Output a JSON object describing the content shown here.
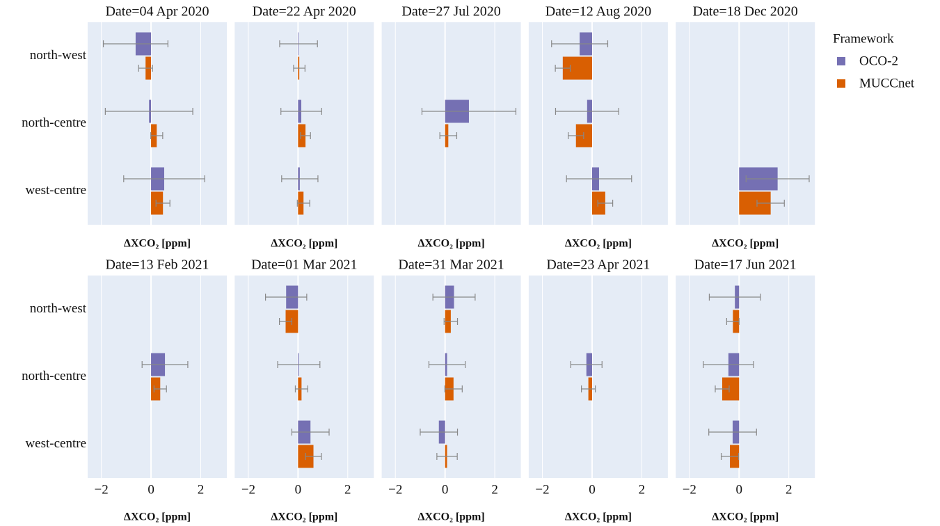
{
  "chart_data": [
    {
      "type": "bar",
      "orientation": "h",
      "title": "Date=04 Apr 2020",
      "xlabel": "ΔXCO₂ [ppm]",
      "legend_title": "Framework",
      "categories": [
        "north-west",
        "north-centre",
        "west-centre"
      ],
      "series": [
        {
          "name": "OCO-2",
          "color": "#7570b3",
          "values": [
            -0.62,
            -0.08,
            0.53
          ],
          "errors": [
            1.3,
            1.76,
            1.63
          ]
        },
        {
          "name": "MUCCnet",
          "color": "#d95f02",
          "values": [
            -0.22,
            0.23,
            0.48
          ],
          "errors": [
            0.28,
            0.24,
            0.28
          ]
        }
      ],
      "xlim": [
        -2.55,
        3.05
      ],
      "xticks": [
        -2,
        0,
        2
      ]
    },
    {
      "type": "bar",
      "orientation": "h",
      "title": "Date=22 Apr 2020",
      "xlabel": "ΔXCO₂ [ppm]",
      "categories": [
        null,
        null,
        null
      ],
      "series": [
        {
          "color": "#7570b3",
          "values": [
            0.02,
            0.13,
            0.07
          ],
          "errors": [
            0.76,
            0.82,
            0.73
          ]
        },
        {
          "color": "#d95f02",
          "values": [
            0.05,
            0.3,
            0.22
          ],
          "errors": [
            0.23,
            0.2,
            0.25
          ]
        }
      ],
      "xlim": [
        -2.55,
        3.05
      ],
      "xticks": [
        -2,
        0,
        2
      ]
    },
    {
      "type": "bar",
      "orientation": "h",
      "title": "Date=27 Jul 2020",
      "xlabel": "ΔXCO₂ [ppm]",
      "categories": [
        null,
        null,
        null
      ],
      "series": [
        {
          "color": "#7570b3",
          "values": [
            null,
            0.96,
            null
          ],
          "errors": [
            null,
            1.89,
            null
          ]
        },
        {
          "color": "#d95f02",
          "values": [
            null,
            0.13,
            null
          ],
          "errors": [
            null,
            0.34,
            null
          ]
        }
      ],
      "xlim": [
        -2.55,
        3.05
      ],
      "xticks": [
        -2,
        0,
        2
      ]
    },
    {
      "type": "bar",
      "orientation": "h",
      "title": "Date=12 Aug 2020",
      "xlabel": "ΔXCO₂ [ppm]",
      "categories": [
        null,
        null,
        null
      ],
      "series": [
        {
          "color": "#7570b3",
          "values": [
            -0.5,
            -0.2,
            0.28
          ],
          "errors": [
            1.13,
            1.27,
            1.31
          ]
        },
        {
          "color": "#d95f02",
          "values": [
            -1.18,
            -0.65,
            0.53
          ],
          "errors": [
            0.3,
            0.31,
            0.3
          ]
        }
      ],
      "xlim": [
        -2.55,
        3.05
      ],
      "xticks": [
        -2,
        0,
        2
      ]
    },
    {
      "type": "bar",
      "orientation": "h",
      "title": "Date=18 Dec 2020",
      "xlabel": "ΔXCO₂ [ppm]",
      "categories": [
        null,
        null,
        null
      ],
      "series": [
        {
          "color": "#7570b3",
          "values": [
            null,
            null,
            1.55
          ],
          "errors": [
            null,
            null,
            1.27
          ]
        },
        {
          "color": "#d95f02",
          "values": [
            null,
            null,
            1.27
          ],
          "errors": [
            null,
            null,
            0.55
          ]
        }
      ],
      "xlim": [
        -2.55,
        3.05
      ],
      "xticks": [
        -2,
        0,
        2
      ]
    },
    {
      "type": "bar",
      "orientation": "h",
      "title": "Date=13 Feb 2021",
      "xlabel": "ΔXCO₂ [ppm]",
      "categories": [
        "north-west",
        "north-centre",
        "west-centre"
      ],
      "series": [
        {
          "color": "#7570b3",
          "values": [
            null,
            0.56,
            null
          ],
          "errors": [
            null,
            0.92,
            null
          ]
        },
        {
          "color": "#d95f02",
          "values": [
            null,
            0.37,
            null
          ],
          "errors": [
            null,
            0.25,
            null
          ]
        }
      ],
      "xlim": [
        -2.55,
        3.05
      ],
      "xticks": [
        {
          "value": -2,
          "label": "−2"
        },
        0,
        2
      ]
    },
    {
      "type": "bar",
      "orientation": "h",
      "title": "Date=01 Mar 2021",
      "xlabel": "ΔXCO₂ [ppm]",
      "categories": [
        null,
        null,
        null
      ],
      "series": [
        {
          "color": "#7570b3",
          "values": [
            -0.48,
            0.03,
            0.5
          ],
          "errors": [
            0.83,
            0.85,
            0.75
          ]
        },
        {
          "color": "#d95f02",
          "values": [
            -0.5,
            0.14,
            0.62
          ],
          "errors": [
            0.25,
            0.25,
            0.32
          ]
        }
      ],
      "xlim": [
        -2.55,
        3.05
      ],
      "xticks": [
        {
          "value": -2,
          "label": "−2"
        },
        0,
        2
      ]
    },
    {
      "type": "bar",
      "orientation": "h",
      "title": "Date=31 Mar 2021",
      "xlabel": "ΔXCO₂ [ppm]",
      "categories": [
        null,
        null,
        null
      ],
      "series": [
        {
          "color": "#7570b3",
          "values": [
            0.36,
            0.08,
            -0.25
          ],
          "errors": [
            0.85,
            0.73,
            0.75
          ]
        },
        {
          "color": "#d95f02",
          "values": [
            0.23,
            0.34,
            0.08
          ],
          "errors": [
            0.27,
            0.35,
            0.41
          ]
        }
      ],
      "xlim": [
        -2.55,
        3.05
      ],
      "xticks": [
        {
          "value": -2,
          "label": "−2"
        },
        0,
        2
      ]
    },
    {
      "type": "bar",
      "orientation": "h",
      "title": "Date=23 Apr 2021",
      "xlabel": "ΔXCO₂ [ppm]",
      "categories": [
        null,
        null,
        null
      ],
      "series": [
        {
          "color": "#7570b3",
          "values": [
            null,
            -0.23,
            null
          ],
          "errors": [
            null,
            0.63,
            null
          ]
        },
        {
          "color": "#d95f02",
          "values": [
            null,
            -0.15,
            null
          ],
          "errors": [
            null,
            0.28,
            null
          ]
        }
      ],
      "xlim": [
        -2.55,
        3.05
      ],
      "xticks": [
        {
          "value": -2,
          "label": "−2"
        },
        0,
        2
      ]
    },
    {
      "type": "bar",
      "orientation": "h",
      "title": "Date=17 Jun 2021",
      "xlabel": "ΔXCO₂ [ppm]",
      "categories": [
        null,
        null,
        null
      ],
      "series": [
        {
          "color": "#7570b3",
          "values": [
            -0.17,
            -0.43,
            -0.26
          ],
          "errors": [
            1.03,
            1.01,
            0.96
          ]
        },
        {
          "color": "#d95f02",
          "values": [
            -0.25,
            -0.68,
            -0.37
          ],
          "errors": [
            0.25,
            0.28,
            0.35
          ]
        }
      ],
      "xlim": [
        -2.55,
        3.05
      ],
      "xticks": [
        {
          "value": -2,
          "label": "−2"
        },
        0,
        2
      ]
    }
  ]
}
